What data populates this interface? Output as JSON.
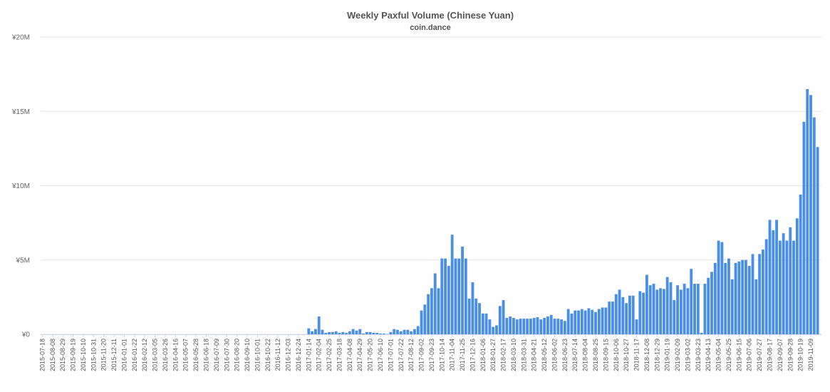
{
  "chart_data": {
    "type": "bar",
    "title": "Weekly Paxful Volume (Chinese Yuan)",
    "subtitle": "coin.dance",
    "color": "#4a8fe7",
    "grid": true,
    "ylim": [
      0,
      20000000
    ],
    "yticks": [
      {
        "value": 0,
        "label": "¥0"
      },
      {
        "value": 5000000,
        "label": "¥5M"
      },
      {
        "value": 10000000,
        "label": "¥10M"
      },
      {
        "value": 15000000,
        "label": "¥15M"
      },
      {
        "value": 20000000,
        "label": "¥20M"
      }
    ],
    "categories": [
      "2015-07-18",
      null,
      null,
      "2015-08-08",
      null,
      null,
      "2015-08-29",
      null,
      null,
      "2015-09-19",
      null,
      null,
      "2015-10-10",
      null,
      null,
      "2015-10-31",
      null,
      null,
      "2015-11-20",
      null,
      null,
      "2015-12-11",
      null,
      null,
      "2016-01-01",
      null,
      null,
      "2016-01-22",
      null,
      null,
      "2016-02-12",
      null,
      null,
      "2016-03-05",
      null,
      null,
      "2016-03-26",
      null,
      null,
      "2016-04-16",
      null,
      null,
      "2016-05-07",
      null,
      null,
      "2016-05-28",
      null,
      null,
      "2016-06-18",
      null,
      null,
      "2016-07-09",
      null,
      null,
      "2016-07-30",
      null,
      null,
      "2016-08-20",
      null,
      null,
      "2016-09-10",
      null,
      null,
      "2016-10-01",
      null,
      null,
      "2016-10-22",
      null,
      null,
      "2016-11-12",
      null,
      null,
      "2016-12-03",
      null,
      null,
      "2016-12-24",
      null,
      null,
      "2017-01-14",
      null,
      null,
      "2017-02-04",
      null,
      null,
      "2017-02-25",
      null,
      null,
      "2017-03-18",
      null,
      null,
      "2017-04-08",
      null,
      null,
      "2017-04-29",
      null,
      null,
      "2017-05-20",
      null,
      null,
      "2017-06-10",
      null,
      null,
      "2017-07-01",
      null,
      null,
      "2017-07-22",
      null,
      null,
      "2017-08-12",
      null,
      null,
      "2017-09-02",
      null,
      null,
      "2017-09-23",
      null,
      null,
      "2017-10-14",
      null,
      null,
      "2017-11-04",
      null,
      null,
      "2017-11-25",
      null,
      null,
      "2017-12-16",
      null,
      null,
      "2018-01-06",
      null,
      null,
      "2018-01-27",
      null,
      null,
      "2018-02-17",
      null,
      null,
      "2018-03-10",
      null,
      null,
      "2018-03-31",
      null,
      null,
      "2018-04-21",
      null,
      null,
      "2018-05-12",
      null,
      null,
      "2018-06-02",
      null,
      null,
      "2018-06-23",
      null,
      null,
      "2018-07-14",
      null,
      null,
      "2018-08-04",
      null,
      null,
      "2018-08-25",
      null,
      null,
      "2018-09-15",
      null,
      null,
      "2018-10-06",
      null,
      null,
      "2018-10-27",
      null,
      null,
      "2018-11-17",
      null,
      null,
      "2018-12-08",
      null,
      null,
      "2018-12-29",
      null,
      null,
      "2019-01-19",
      null,
      null,
      "2019-02-09",
      null,
      null,
      "2019-03-02",
      null,
      null,
      "2019-03-23",
      null,
      null,
      "2019-04-13",
      null,
      null,
      "2019-05-04",
      null,
      null,
      "2019-05-25",
      null,
      null,
      "2019-06-15",
      null,
      null,
      "2019-07-06",
      null,
      null,
      "2019-07-27",
      null,
      null,
      "2019-08-17",
      null,
      null,
      "2019-09-07",
      null,
      null,
      "2019-09-28",
      null,
      null,
      "2019-10-19",
      null,
      null,
      "2019-11-09",
      null,
      null
    ],
    "values": [
      0,
      0,
      0,
      0,
      0,
      0,
      0,
      0,
      0,
      0,
      0,
      0,
      0,
      0,
      0,
      0,
      0,
      0,
      0,
      0,
      0,
      0,
      0,
      0,
      0,
      0,
      0,
      0,
      0,
      0,
      0,
      0,
      0,
      0,
      0,
      0,
      0,
      0,
      0,
      0,
      0,
      0,
      0,
      0,
      0,
      0,
      0,
      0,
      0,
      0,
      0,
      0,
      0,
      0,
      0,
      0,
      0,
      0,
      0,
      0,
      0,
      0,
      0,
      0,
      0,
      0,
      0,
      0,
      0,
      0,
      0,
      0,
      0,
      0,
      0,
      0,
      0,
      0,
      400000,
      200000,
      350000,
      1200000,
      300000,
      100000,
      150000,
      150000,
      200000,
      100000,
      150000,
      100000,
      200000,
      350000,
      250000,
      350000,
      50000,
      150000,
      150000,
      100000,
      100000,
      50000,
      50000,
      20000,
      150000,
      350000,
      300000,
      200000,
      300000,
      300000,
      200000,
      350000,
      550000,
      1600000,
      2000000,
      2700000,
      3100000,
      4100000,
      3100000,
      5100000,
      5100000,
      4600000,
      6700000,
      5100000,
      5100000,
      5900000,
      5100000,
      2400000,
      3500000,
      2400000,
      2100000,
      1400000,
      1400000,
      1000000,
      500000,
      600000,
      1900000,
      2300000,
      1100000,
      1200000,
      1100000,
      1000000,
      1050000,
      1050000,
      1050000,
      1050000,
      1100000,
      1150000,
      1000000,
      1100000,
      1200000,
      1300000,
      1050000,
      1050000,
      1000000,
      900000,
      1700000,
      1400000,
      1600000,
      1600000,
      1700000,
      1600000,
      1750000,
      1650000,
      1500000,
      1700000,
      1800000,
      1800000,
      2200000,
      2200000,
      2700000,
      3000000,
      2500000,
      2100000,
      2600000,
      2600000,
      1000000,
      2900000,
      2800000,
      4000000,
      3300000,
      3400000,
      3000000,
      3100000,
      3050000,
      3850000,
      3500000,
      2300000,
      3300000,
      3000000,
      3400000,
      3100000,
      4400000,
      3400000,
      3400000,
      100000,
      3400000,
      3800000,
      4200000,
      4800000,
      6300000,
      6200000,
      4800000,
      5100000,
      3700000,
      4800000,
      4900000,
      5000000,
      5000000,
      4600000,
      5400000,
      3700000,
      5400000,
      5700000,
      6400000,
      7700000,
      7000000,
      7700000,
      6300000,
      6800000,
      6300000,
      7200000,
      6300000,
      7800000,
      9400000,
      14300000,
      16500000,
      16100000,
      14600000,
      12600000
    ]
  }
}
